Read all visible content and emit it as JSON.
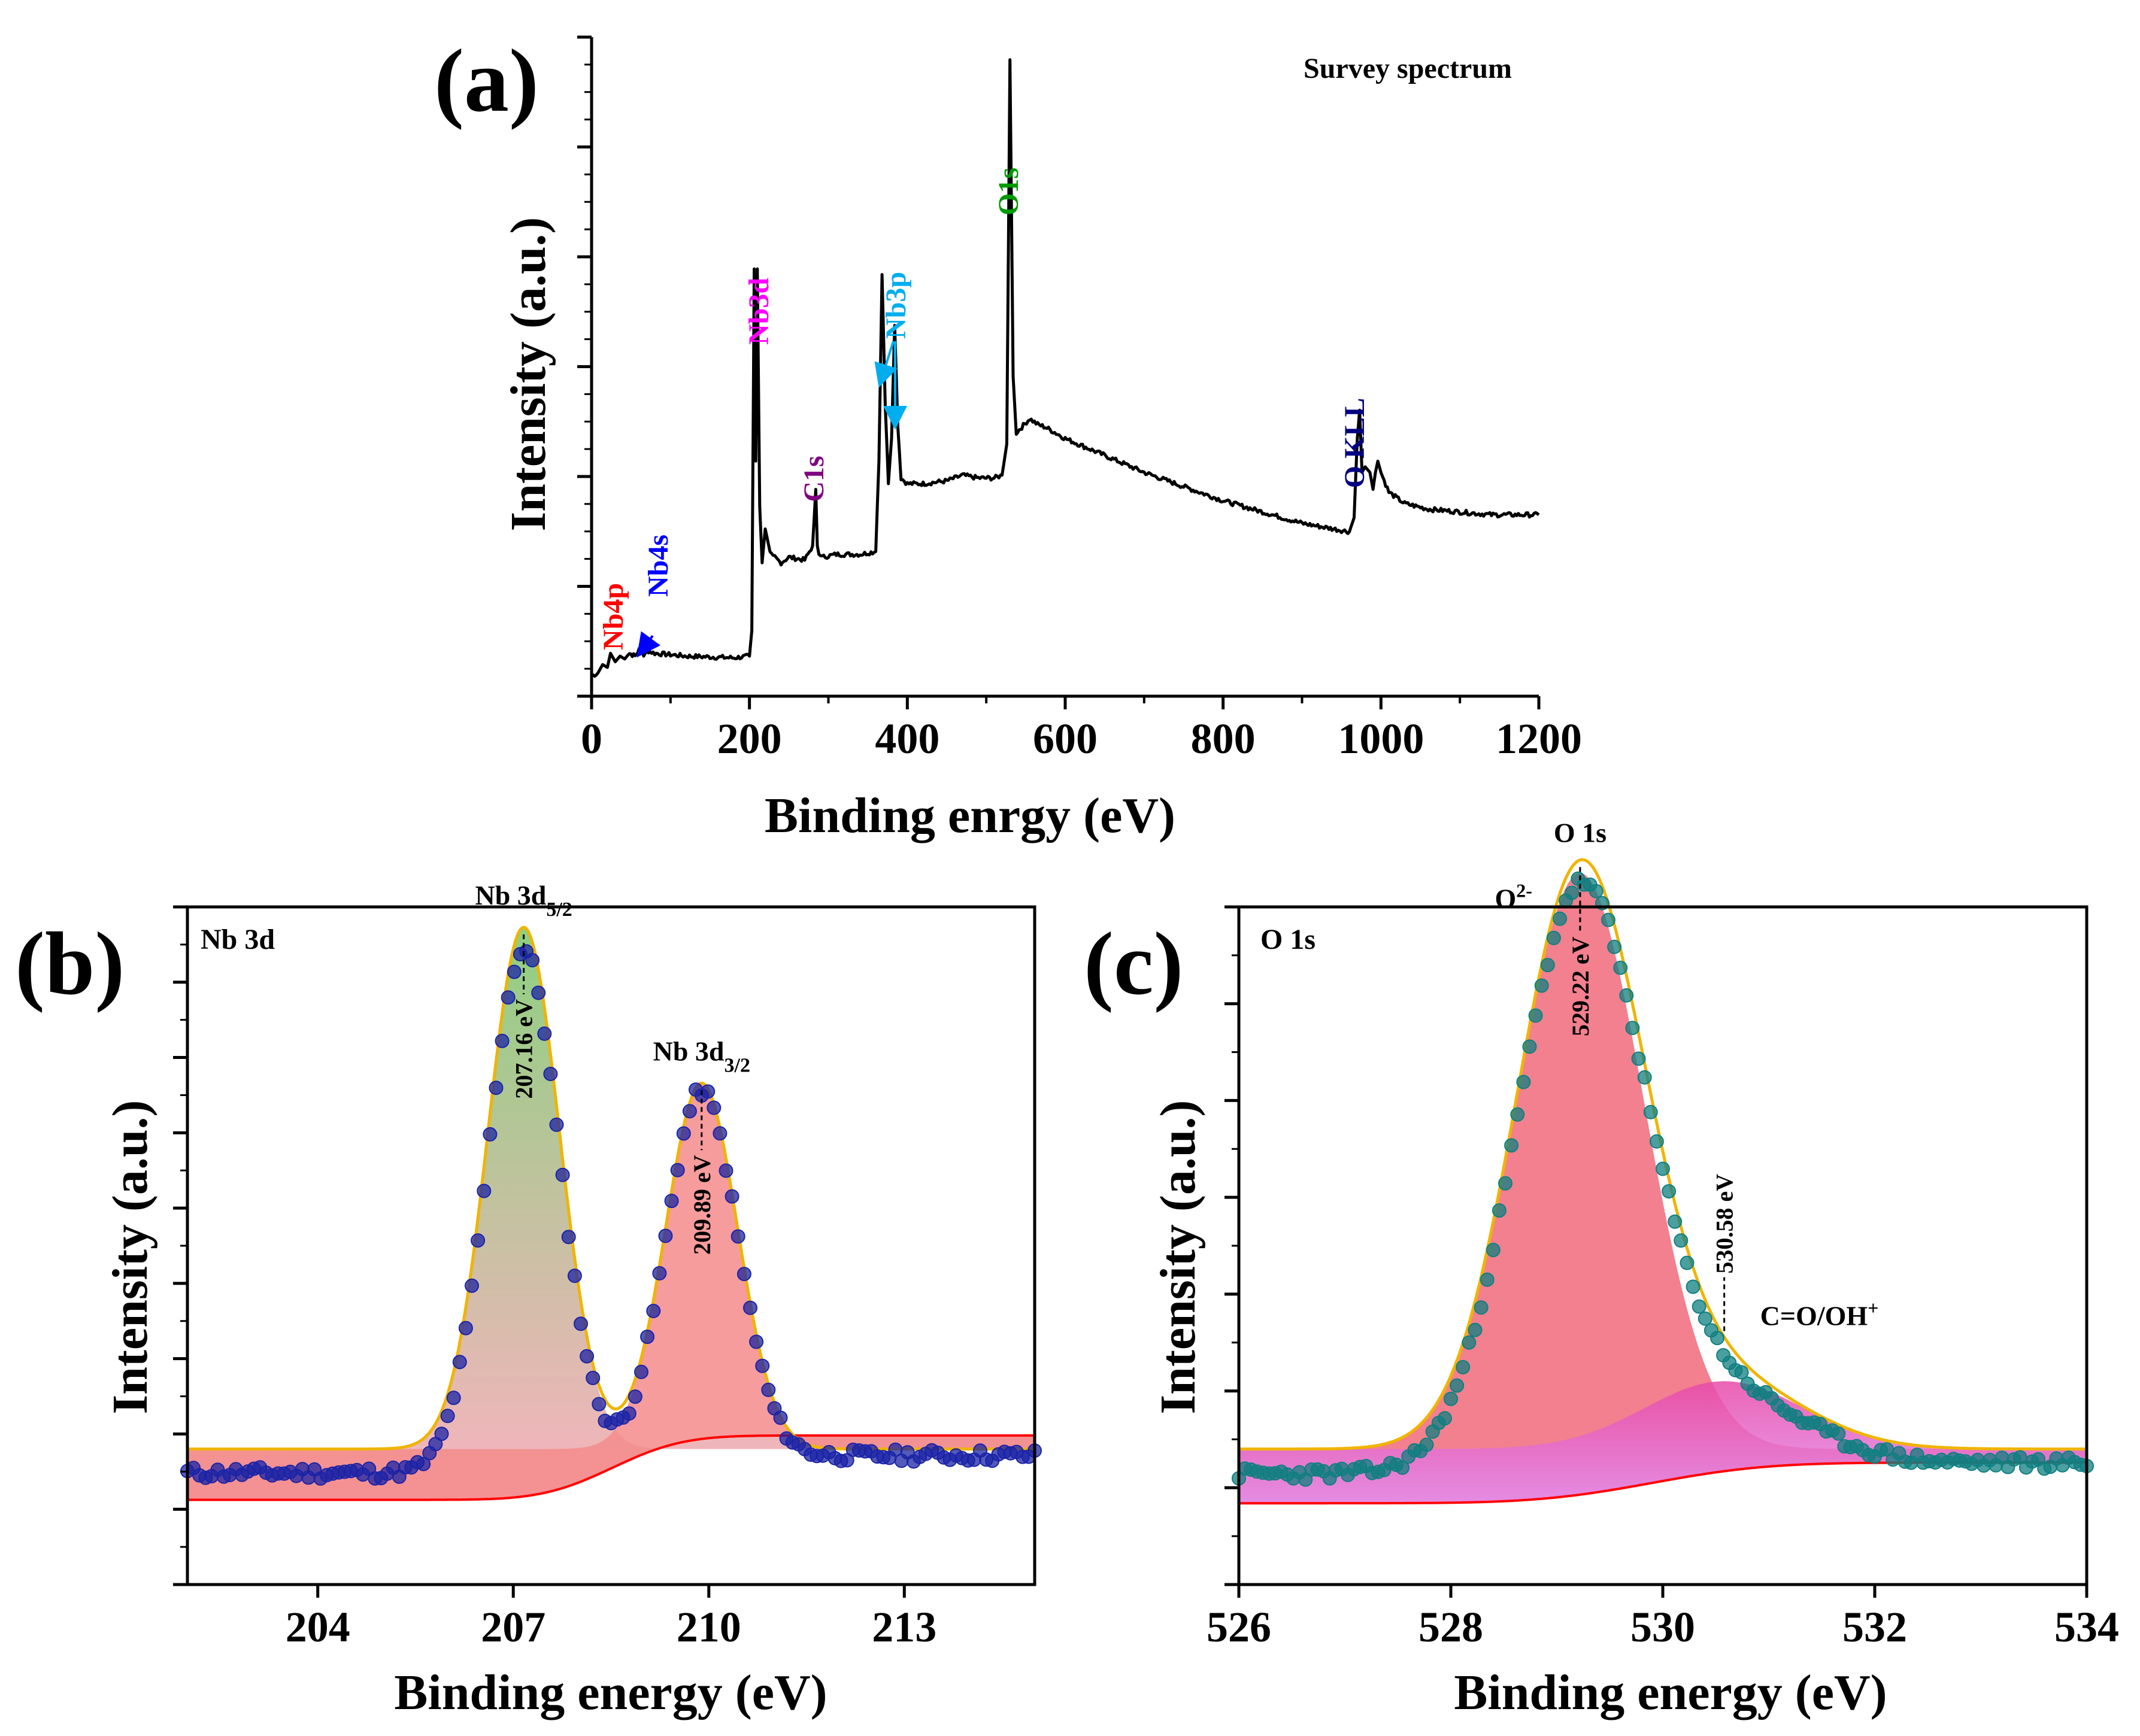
{
  "chart_data": [
    {
      "id": "a",
      "type": "line",
      "panel_label": "(a)",
      "title": "Survey spectrum",
      "xlabel": "Binding enrgy (eV)",
      "ylabel": "Intensity (a.u.)",
      "xlim": [
        0,
        1200
      ],
      "ylim": [
        0,
        100
      ],
      "xticks": [
        0,
        200,
        400,
        600,
        800,
        1000,
        1200
      ],
      "y_ticks_labeled": false,
      "series": [
        {
          "name": "survey",
          "color": "#000000",
          "x": [
            0,
            8,
            14,
            20,
            24,
            30,
            36,
            42,
            48,
            55,
            62,
            66,
            70,
            80,
            120,
            180,
            200,
            203,
            206,
            208,
            210,
            213,
            216,
            220,
            226,
            232,
            240,
            250,
            270,
            280,
            284,
            286,
            288,
            292,
            310,
            340,
            360,
            364,
            368,
            372,
            376,
            380,
            384,
            388,
            392,
            400,
            420,
            450,
            470,
            490,
            510,
            520,
            526,
            530,
            534,
            538,
            545,
            555,
            565,
            575,
            600,
            650,
            700,
            750,
            800,
            850,
            900,
            940,
            960,
            966,
            970,
            973,
            976,
            980,
            986,
            990,
            993,
            996,
            1000,
            1010,
            1030,
            1060,
            1100,
            1140,
            1200
          ],
          "y": [
            2,
            2.5,
            4,
            3.5,
            6,
            4.5,
            5.5,
            5,
            6,
            5.5,
            7,
            5.5,
            6.5,
            6,
            5.5,
            5.2,
            5.5,
            10,
            74,
            40,
            74,
            32,
            22,
            28,
            24,
            23,
            22,
            23,
            22.5,
            25,
            35,
            25,
            23.5,
            23,
            23.5,
            23.5,
            24,
            40,
            73,
            50,
            36,
            44,
            64,
            46,
            37,
            36,
            36,
            36.5,
            37.5,
            37,
            37,
            37.5,
            43,
            111,
            55,
            45,
            46,
            47.5,
            46.5,
            46,
            44,
            41,
            38,
            35.5,
            33,
            31,
            29,
            28,
            27.5,
            30,
            44,
            49,
            38,
            39,
            38,
            35,
            38,
            40,
            38,
            34.5,
            32.5,
            31.5,
            31,
            30.5,
            30.5
          ]
        }
      ],
      "annotations": [
        {
          "text": "Nb4p",
          "x": 20,
          "color": "#ff0000"
        },
        {
          "text": "Nb4s",
          "x": 62,
          "color": "#0000ff"
        },
        {
          "text": "Nb3d",
          "x": 208,
          "color": "#ff00ff"
        },
        {
          "text": "C1s",
          "x": 285,
          "color": "#800080"
        },
        {
          "text": "Nb3p",
          "x": 375,
          "color": "#00aeef"
        },
        {
          "text": "O1s",
          "x": 530,
          "color": "#009900"
        },
        {
          "text": "O KLL",
          "x": 973,
          "color": "#000080"
        }
      ]
    },
    {
      "id": "b",
      "type": "line",
      "panel_label": "(b)",
      "title": "Nb 3d",
      "xlabel": "Binding energy (eV)",
      "ylabel": "Intensity (a.u.)",
      "xlim": [
        202,
        215
      ],
      "ylim": [
        0,
        100
      ],
      "xticks": [
        204,
        207,
        210,
        213
      ],
      "y_ticks_labeled": false,
      "background": {
        "color": "#ff0000",
        "low": 12.5,
        "high": 22
      },
      "components": [
        {
          "name": "Nb 3d5/2",
          "center": 207.16,
          "height": 77,
          "sigma": 0.55,
          "fill": [
            "#7cc76b",
            "#f7a6b4"
          ]
        },
        {
          "name": "Nb 3d3/2",
          "center": 209.89,
          "height": 54,
          "sigma": 0.55,
          "fill": [
            "#f48b8b",
            "#f48b8b"
          ]
        }
      ],
      "envelope_color": "#f0b400",
      "data_color": "#1b23a6",
      "peak_labels": [
        {
          "main": "Nb 3d",
          "sub": "5/2",
          "x": 207.16
        },
        {
          "main": "Nb 3d",
          "sub": "3/2",
          "x": 209.89
        }
      ],
      "ev_labels": [
        {
          "text": "207.16 eV",
          "x": 207.16
        },
        {
          "text": "209.89 eV",
          "x": 209.89
        }
      ]
    },
    {
      "id": "c",
      "type": "line",
      "panel_label": "(c)",
      "title": "O 1s",
      "xlabel": "Binding energy (eV)",
      "ylabel": "Intensity (a.u.)",
      "xlim": [
        526,
        534
      ],
      "ylim": [
        0,
        100
      ],
      "xticks": [
        526,
        528,
        530,
        532,
        534
      ],
      "y_ticks_labeled": false,
      "background": {
        "color": "#ff0000",
        "low": 12,
        "high": 18
      },
      "components": [
        {
          "name": "O2-",
          "center": 529.22,
          "height": 85,
          "sigma": 0.6,
          "fill": [
            "#f06a7a",
            "#f06a7a"
          ]
        },
        {
          "name": "C=O/OH+",
          "center": 530.58,
          "height": 10,
          "sigma": 0.75,
          "fill": [
            "#e84aa8",
            "#e28ef2"
          ]
        }
      ],
      "envelope_color": "#f0b400",
      "data_color": "#0f7f80",
      "labels": {
        "main": "O 1s",
        "o2": "O",
        "o2_sup": "2-",
        "co": "C=O/OH",
        "co_sup": "+"
      },
      "ev_labels": [
        {
          "text": "529.22 eV",
          "x": 529.22
        },
        {
          "text": "530.58 eV",
          "x": 530.58
        }
      ]
    }
  ]
}
